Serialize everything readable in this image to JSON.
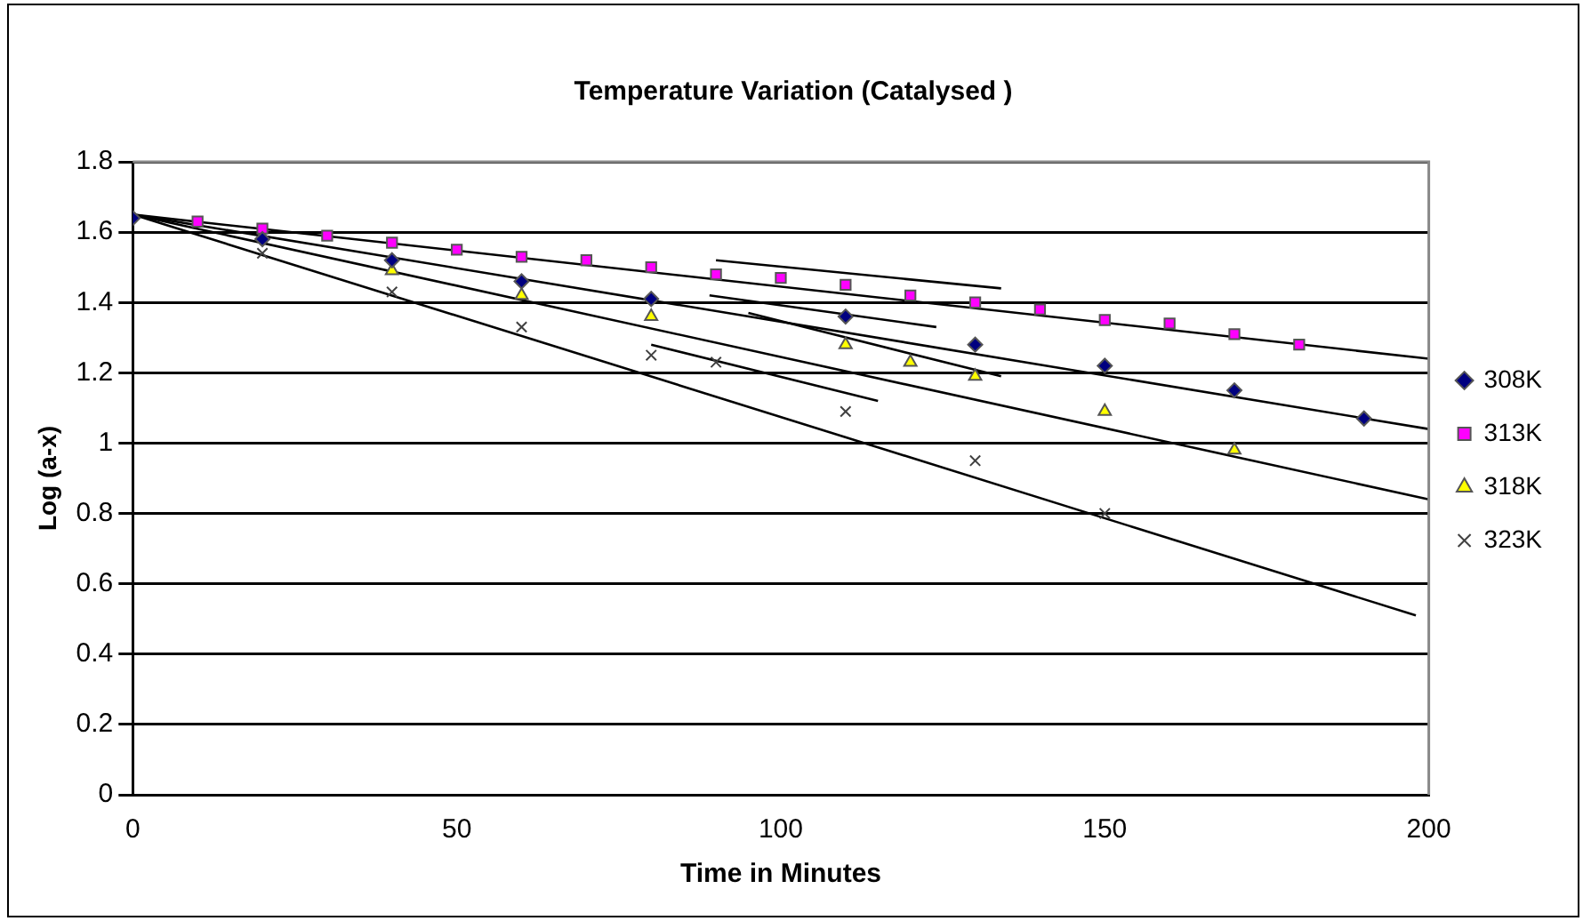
{
  "chart_data": {
    "type": "scatter",
    "title": "Temperature Variation (Catalysed )",
    "xlabel": "Time in Minutes",
    "ylabel": "Log (a-x)",
    "xlim": [
      0,
      200
    ],
    "xticks": [
      0,
      50,
      100,
      150,
      200
    ],
    "ylim": [
      0,
      1.8
    ],
    "yticks": [
      0,
      0.2,
      0.4,
      0.6,
      0.8,
      1,
      1.2,
      1.4,
      1.6,
      1.8
    ],
    "grid": "y",
    "legend": "right",
    "series": [
      {
        "name": "308K",
        "marker": "diamond",
        "color": "#000080",
        "x": [
          0,
          20,
          40,
          60,
          80,
          110,
          130,
          150,
          170,
          190
        ],
        "values": [
          1.64,
          1.58,
          1.52,
          1.46,
          1.41,
          1.36,
          1.28,
          1.22,
          1.15,
          1.07
        ]
      },
      {
        "name": "313K",
        "marker": "square",
        "color": "#ff00ff",
        "x": [
          10,
          20,
          30,
          40,
          50,
          60,
          70,
          80,
          90,
          100,
          110,
          120,
          130,
          140,
          150,
          160,
          170,
          180
        ],
        "values": [
          1.63,
          1.61,
          1.59,
          1.57,
          1.55,
          1.53,
          1.52,
          1.5,
          1.48,
          1.47,
          1.45,
          1.42,
          1.4,
          1.38,
          1.35,
          1.34,
          1.31,
          1.28
        ]
      },
      {
        "name": "318K",
        "marker": "triangle",
        "color": "#ffff00",
        "x": [
          40,
          60,
          80,
          110,
          120,
          130,
          150,
          170
        ],
        "values": [
          1.49,
          1.42,
          1.36,
          1.28,
          1.23,
          1.19,
          1.09,
          0.98
        ]
      },
      {
        "name": "323K",
        "marker": "cross",
        "color": "#404040",
        "x": [
          20,
          40,
          60,
          80,
          90,
          110,
          130,
          150
        ],
        "values": [
          1.54,
          1.43,
          1.33,
          1.25,
          1.23,
          1.09,
          0.95,
          0.8
        ]
      },
      {
        "type": "line",
        "color": "#000000",
        "x": [
          0,
          200
        ],
        "values": [
          1.65,
          1.24
        ]
      },
      {
        "type": "line",
        "color": "#000000",
        "x": [
          0,
          200
        ],
        "values": [
          1.65,
          1.04
        ]
      },
      {
        "type": "line",
        "color": "#000000",
        "x": [
          0,
          200
        ],
        "values": [
          1.65,
          0.84
        ]
      },
      {
        "type": "line",
        "color": "#000000",
        "x": [
          0,
          198
        ],
        "values": [
          1.65,
          0.51
        ]
      },
      {
        "type": "line",
        "color": "#000000",
        "x": [
          90,
          134
        ],
        "values": [
          1.52,
          1.44
        ]
      },
      {
        "type": "line",
        "color": "#000000",
        "x": [
          89,
          124
        ],
        "values": [
          1.42,
          1.33
        ]
      },
      {
        "type": "line",
        "color": "#000000",
        "x": [
          95,
          134
        ],
        "values": [
          1.37,
          1.19
        ]
      },
      {
        "type": "line",
        "color": "#000000",
        "x": [
          80,
          115
        ],
        "values": [
          1.28,
          1.12
        ]
      }
    ]
  }
}
